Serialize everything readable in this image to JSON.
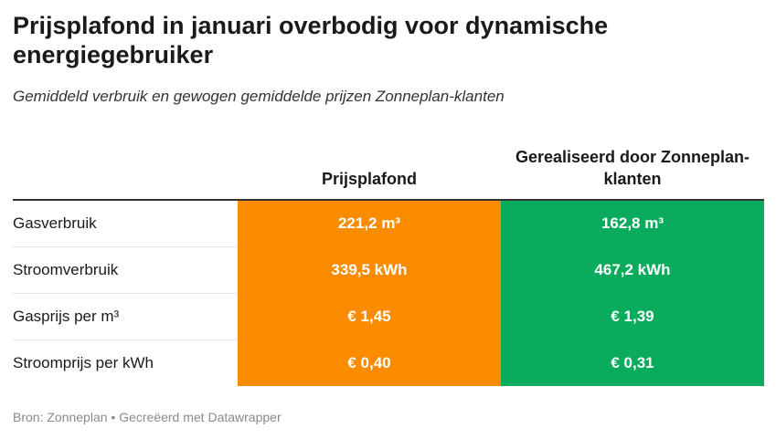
{
  "chart_data": {
    "type": "table",
    "title": "Prijsplafond in januari overbodig voor dynamische energiegebruiker",
    "subtitle": "Gemiddeld verbruik en gewogen gemiddelde prijzen Zonneplan-klanten",
    "columns": [
      "Prijsplafond",
      "Gerealiseerd door Zonneplan-klanten"
    ],
    "rows": [
      {
        "label": "Gasverbruik",
        "values": [
          "221,2 m³",
          "162,8 m³"
        ]
      },
      {
        "label": "Stroomverbruik",
        "values": [
          "339,5 kWh",
          "467,2 kWh"
        ]
      },
      {
        "label": "Gasprijs per m³",
        "values": [
          "€ 1,45",
          "€ 1,39"
        ]
      },
      {
        "label": "Stroomprijs per kWh",
        "values": [
          "€ 0,40",
          "€ 0,31"
        ]
      }
    ],
    "colors": {
      "col1": "#fb8c00",
      "col2": "#0aab5c"
    }
  },
  "footer": {
    "text": "Bron: Zonneplan • Gecreëerd met Datawrapper"
  }
}
